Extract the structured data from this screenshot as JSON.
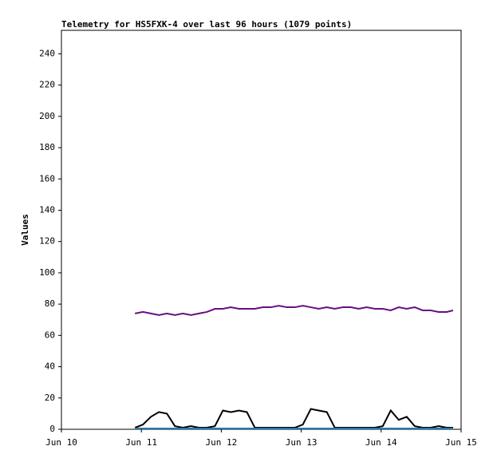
{
  "chart_data": {
    "type": "line",
    "title": "Telemetry for HS5FXK-4 over last 96 hours (1079 points)",
    "y_label": "Values",
    "x": [
      10.92,
      11.02,
      11.12,
      11.22,
      11.32,
      11.42,
      11.52,
      11.62,
      11.72,
      11.82,
      11.92,
      12.02,
      12.12,
      12.22,
      12.32,
      12.42,
      12.52,
      12.62,
      12.72,
      12.82,
      12.92,
      13.02,
      13.12,
      13.22,
      13.32,
      13.42,
      13.52,
      13.62,
      13.72,
      13.82,
      13.92,
      14.02,
      14.12,
      14.22,
      14.32,
      14.42,
      14.52,
      14.62,
      14.72,
      14.82,
      14.9
    ],
    "series": [
      {
        "color": "#6a0d83",
        "values": [
          74,
          75,
          74,
          73,
          74,
          73,
          74,
          73,
          74,
          75,
          77,
          77,
          78,
          77,
          77,
          77,
          78,
          78,
          79,
          78,
          78,
          79,
          78,
          77,
          78,
          77,
          78,
          78,
          77,
          78,
          77,
          77,
          76,
          78,
          77,
          78,
          76,
          76,
          75,
          75,
          76
        ]
      },
      {
        "color": "#000000",
        "values": [
          1,
          3,
          8,
          11,
          10,
          2,
          1,
          2,
          1,
          1,
          2,
          12,
          11,
          12,
          11,
          1,
          1,
          1,
          1,
          1,
          1,
          3,
          13,
          12,
          11,
          1,
          1,
          1,
          1,
          1,
          1,
          2,
          12,
          6,
          8,
          2,
          1,
          1,
          2,
          1,
          1
        ]
      },
      {
        "color": "#1f77b4",
        "values": [
          0.5,
          0.5,
          0.5,
          0.5,
          0.5,
          0.5,
          0.5,
          0.5,
          0.5,
          0.5,
          0.5,
          0.5,
          0.5,
          0.5,
          0.5,
          0.5,
          0.5,
          0.5,
          0.5,
          0.5,
          0.5,
          0.5,
          0.5,
          0.5,
          0.5,
          0.5,
          0.5,
          0.5,
          0.5,
          0.5,
          0.5,
          0.5,
          0.5,
          0.5,
          0.5,
          0.5,
          0.5,
          0.5,
          0.5,
          0.5,
          0.5
        ]
      }
    ],
    "xlim": [
      10,
      15
    ],
    "xticks": [
      {
        "value": 10,
        "label": "Jun 10"
      },
      {
        "value": 11,
        "label": "Jun 11"
      },
      {
        "value": 12,
        "label": "Jun 12"
      },
      {
        "value": 13,
        "label": "Jun 13"
      },
      {
        "value": 14,
        "label": "Jun 14"
      },
      {
        "value": 15,
        "label": "Jun 15"
      }
    ],
    "ylim": [
      0,
      255
    ],
    "yticks": [
      0,
      20,
      40,
      60,
      80,
      100,
      120,
      140,
      160,
      180,
      200,
      220,
      240
    ]
  }
}
